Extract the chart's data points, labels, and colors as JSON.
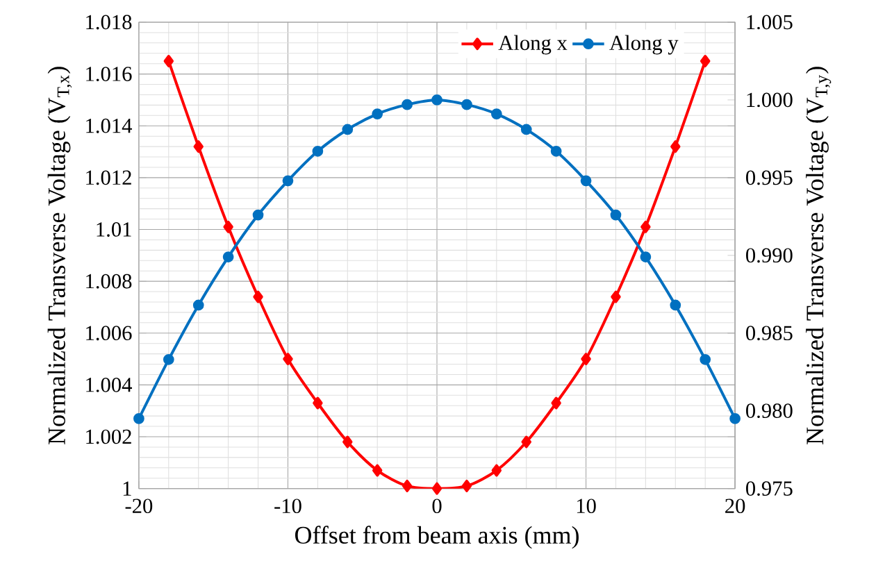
{
  "chart_data": {
    "type": "line",
    "xlabel": "Offset from beam axis (mm)",
    "ylabel": "Normalized Transverse Voltage (V$_{T,x}$)",
    "y2label": "Normalized Transverse Voltage (V$_{T,y}$)",
    "xlim": [
      -20,
      20
    ],
    "xticks": [
      -20,
      -10,
      0,
      10,
      20
    ],
    "ylim": [
      1,
      1.018
    ],
    "yticks": [
      1,
      1.002,
      1.004,
      1.006,
      1.008,
      1.01,
      1.012,
      1.014,
      1.016,
      1.018
    ],
    "y2lim": [
      0.975,
      1.005
    ],
    "y2ticks": [
      0.975,
      {
        "value": 0.98,
        "label": "0.980"
      },
      0.985,
      {
        "value": 0.99,
        "label": "0.990"
      },
      0.995,
      {
        "value": 1.0,
        "label": "1.000"
      },
      1.005
    ],
    "grid": true,
    "legend": "top right",
    "line_style": "solid",
    "series": [
      {
        "name": "Along x",
        "color": "#ff0000",
        "marker": "diamond",
        "x": [
          -18,
          -16,
          -14,
          -12,
          -10,
          -8,
          -6,
          -4,
          -2,
          0,
          2,
          4,
          6,
          8,
          10,
          12,
          14,
          16,
          18
        ],
        "values": [
          1.0165,
          1.0132,
          1.0101,
          1.0074,
          1.005,
          1.0033,
          1.0018,
          1.0007,
          1.0001,
          1.0,
          1.0001,
          1.0007,
          1.0018,
          1.0033,
          1.005,
          1.0074,
          1.0101,
          1.0132,
          1.0165
        ]
      },
      {
        "name": "Along y",
        "color": "#0070c0",
        "marker": "circle",
        "axis": "y2",
        "x": [
          -20,
          -18,
          -16,
          -14,
          -12,
          -10,
          -8,
          -6,
          -4,
          -2,
          0,
          2,
          4,
          6,
          8,
          10,
          12,
          14,
          16,
          18,
          20
        ],
        "values": [
          0.9795,
          0.9833,
          0.9868,
          0.9899,
          0.9926,
          0.9948,
          0.9967,
          0.9981,
          0.9991,
          0.9997,
          1.0,
          0.9997,
          0.9991,
          0.9981,
          0.9967,
          0.9948,
          0.9926,
          0.9899,
          0.9868,
          0.9833,
          0.9795
        ]
      }
    ]
  }
}
